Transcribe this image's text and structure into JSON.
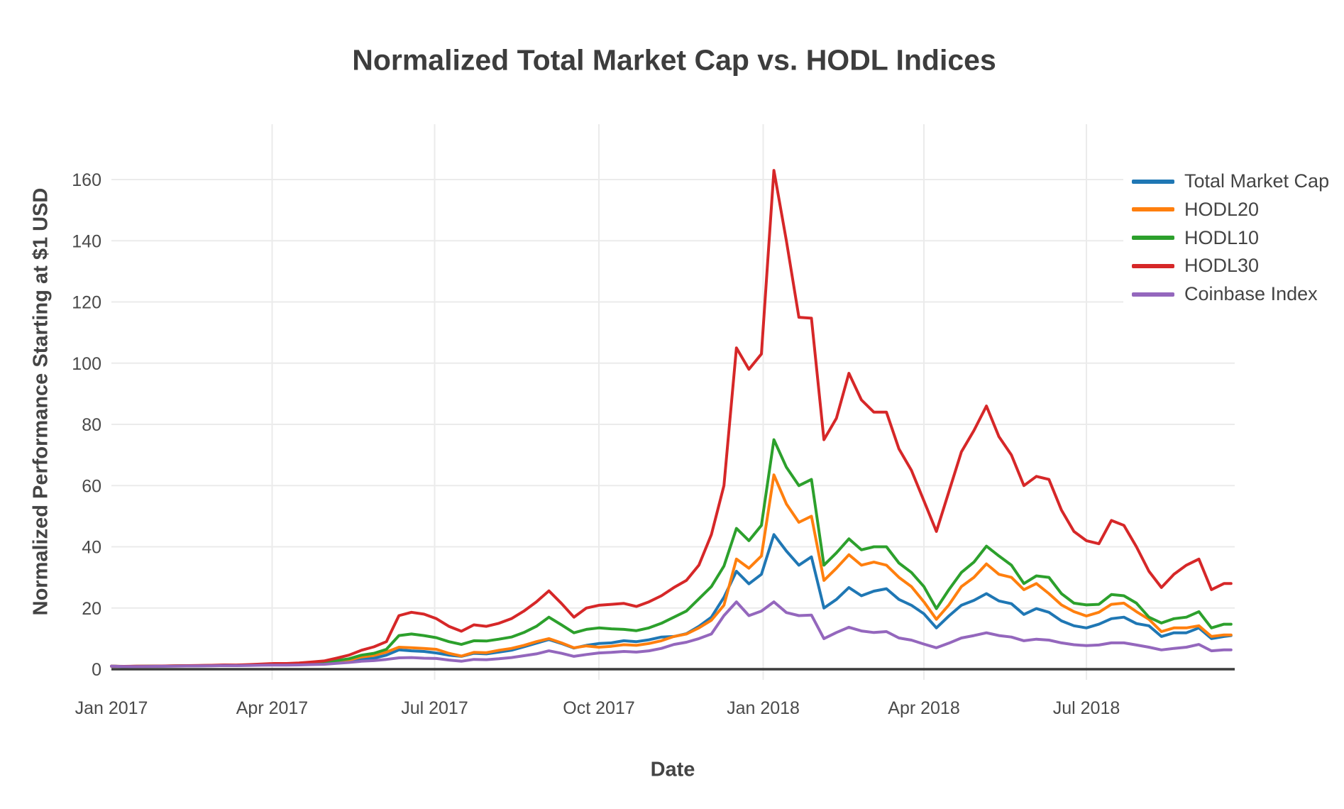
{
  "page": {
    "title": "Normalized Total Market Cap vs. HODL Indices"
  },
  "axes": {
    "x_title": "Date",
    "y_title": "Normalized Performance Starting at $1 USD"
  },
  "legend": {
    "items": [
      {
        "label": "Total Market Cap"
      },
      {
        "label": "HODL20"
      },
      {
        "label": "HODL10"
      },
      {
        "label": "HODL30"
      },
      {
        "label": "Coinbase Index"
      }
    ]
  },
  "chart_data": {
    "type": "line",
    "title": "Normalized Total Market Cap vs. HODL Indices",
    "xlabel": "Date",
    "ylabel": "Normalized Performance Starting at $1 USD",
    "grid": true,
    "legend_position": "top-right",
    "background_color": "#ffffff",
    "gridline_color": "#ebebeb",
    "zeroline_color": "#3b3b3b",
    "text_color": "#4a4a4a",
    "ylim": [
      -3.5,
      178
    ],
    "y_ticks": [
      0,
      20,
      40,
      60,
      80,
      100,
      120,
      140,
      160
    ],
    "x_ticks": [
      {
        "date": "2017-01-01",
        "label": "Jan 2017"
      },
      {
        "date": "2017-04-01",
        "label": "Apr 2017"
      },
      {
        "date": "2017-07-01",
        "label": "Jul 2017"
      },
      {
        "date": "2017-10-01",
        "label": "Oct 2017"
      },
      {
        "date": "2018-01-01",
        "label": "Jan 2018"
      },
      {
        "date": "2018-04-01",
        "label": "Apr 2018"
      },
      {
        "date": "2018-07-01",
        "label": "Jul 2018"
      }
    ],
    "x": [
      "2017-01-01",
      "2017-01-08",
      "2017-01-15",
      "2017-01-22",
      "2017-01-29",
      "2017-02-05",
      "2017-02-12",
      "2017-02-19",
      "2017-02-26",
      "2017-03-05",
      "2017-03-12",
      "2017-03-19",
      "2017-03-26",
      "2017-04-02",
      "2017-04-09",
      "2017-04-16",
      "2017-04-23",
      "2017-04-30",
      "2017-05-07",
      "2017-05-14",
      "2017-05-21",
      "2017-05-28",
      "2017-06-04",
      "2017-06-11",
      "2017-06-18",
      "2017-06-25",
      "2017-07-02",
      "2017-07-09",
      "2017-07-16",
      "2017-07-23",
      "2017-07-30",
      "2017-08-06",
      "2017-08-13",
      "2017-08-20",
      "2017-08-27",
      "2017-09-03",
      "2017-09-10",
      "2017-09-17",
      "2017-09-24",
      "2017-10-01",
      "2017-10-08",
      "2017-10-15",
      "2017-10-22",
      "2017-10-29",
      "2017-11-05",
      "2017-11-12",
      "2017-11-19",
      "2017-11-26",
      "2017-12-03",
      "2017-12-10",
      "2017-12-17",
      "2017-12-24",
      "2017-12-31",
      "2018-01-07",
      "2018-01-14",
      "2018-01-21",
      "2018-01-28",
      "2018-02-04",
      "2018-02-11",
      "2018-02-18",
      "2018-02-25",
      "2018-03-04",
      "2018-03-11",
      "2018-03-18",
      "2018-03-25",
      "2018-04-01",
      "2018-04-08",
      "2018-04-15",
      "2018-04-22",
      "2018-04-29",
      "2018-05-06",
      "2018-05-13",
      "2018-05-20",
      "2018-05-27",
      "2018-06-03",
      "2018-06-10",
      "2018-06-17",
      "2018-06-24",
      "2018-07-01",
      "2018-07-08",
      "2018-07-15",
      "2018-07-22",
      "2018-07-29",
      "2018-08-05",
      "2018-08-12",
      "2018-08-19",
      "2018-08-26",
      "2018-09-02",
      "2018-09-09",
      "2018-09-16",
      "2018-09-20"
    ],
    "series": [
      {
        "name": "Total Market Cap",
        "color": "#1f77b4",
        "values": [
          1.0,
          0.88,
          0.92,
          0.95,
          1.0,
          1.05,
          1.1,
          1.12,
          1.18,
          1.25,
          1.22,
          1.3,
          1.4,
          1.45,
          1.42,
          1.5,
          1.6,
          1.75,
          2.1,
          2.5,
          3.3,
          3.6,
          4.6,
          6.3,
          6.0,
          5.8,
          5.3,
          4.6,
          4.2,
          5.2,
          5.0,
          5.6,
          6.2,
          7.3,
          8.5,
          9.7,
          8.4,
          6.9,
          7.8,
          8.4,
          8.6,
          9.3,
          9.0,
          9.6,
          10.5,
          10.7,
          11.6,
          14.0,
          17.0,
          23.5,
          32.0,
          27.9,
          31.0,
          44.0,
          38.6,
          34.0,
          36.7,
          20.0,
          22.8,
          26.7,
          24.0,
          25.5,
          26.3,
          22.8,
          20.9,
          18.1,
          13.5,
          17.4,
          20.9,
          22.5,
          24.7,
          22.3,
          21.4,
          17.9,
          19.8,
          18.6,
          15.8,
          14.2,
          13.5,
          14.7,
          16.5,
          17.0,
          14.9,
          14.2,
          10.7,
          11.9,
          11.9,
          13.5,
          10.0,
          10.7,
          11.0
        ]
      },
      {
        "name": "HODL20",
        "color": "#ff7f0e",
        "values": [
          1.0,
          0.9,
          0.95,
          0.98,
          1.02,
          1.08,
          1.12,
          1.15,
          1.22,
          1.3,
          1.28,
          1.38,
          1.5,
          1.58,
          1.55,
          1.65,
          1.8,
          2.0,
          2.5,
          3.0,
          4.0,
          4.5,
          5.6,
          7.2,
          7.0,
          6.8,
          6.5,
          5.2,
          4.3,
          5.5,
          5.4,
          6.2,
          6.8,
          7.8,
          9.0,
          10.0,
          8.6,
          7.0,
          7.6,
          7.2,
          7.5,
          8.0,
          7.8,
          8.4,
          9.3,
          10.7,
          11.5,
          13.5,
          16.0,
          20.9,
          36.0,
          33.0,
          37.0,
          63.5,
          54.0,
          48.0,
          50.0,
          29.0,
          33.0,
          37.4,
          34.0,
          35.0,
          34.0,
          30.0,
          27.0,
          22.0,
          16.3,
          21.0,
          27.0,
          30.0,
          34.4,
          31.0,
          30.0,
          26.0,
          28.0,
          24.7,
          21.0,
          18.8,
          17.4,
          18.6,
          21.2,
          21.6,
          18.8,
          16.3,
          12.3,
          13.5,
          13.5,
          14.2,
          10.7,
          11.2,
          11.2
        ]
      },
      {
        "name": "HODL10",
        "color": "#2ca02c",
        "values": [
          1.0,
          0.9,
          0.94,
          0.97,
          1.02,
          1.07,
          1.12,
          1.15,
          1.22,
          1.3,
          1.28,
          1.4,
          1.55,
          1.65,
          1.62,
          1.75,
          1.95,
          2.2,
          2.8,
          3.4,
          4.6,
          5.2,
          6.5,
          11.0,
          11.5,
          11.0,
          10.3,
          9.0,
          8.1,
          9.3,
          9.2,
          9.8,
          10.5,
          12.0,
          14.0,
          17.0,
          14.5,
          11.9,
          13.0,
          13.5,
          13.2,
          13.0,
          12.6,
          13.5,
          15.0,
          17.0,
          19.0,
          23.0,
          27.0,
          33.7,
          46.0,
          42.0,
          47.0,
          75.0,
          66.0,
          60.0,
          62.0,
          34.0,
          38.0,
          42.6,
          39.0,
          40.0,
          40.0,
          34.7,
          31.6,
          27.0,
          19.8,
          26.0,
          31.6,
          35.0,
          40.2,
          37.0,
          34.0,
          28.0,
          30.5,
          30.0,
          24.7,
          21.6,
          21.0,
          21.2,
          24.4,
          24.0,
          21.6,
          17.0,
          15.1,
          16.5,
          17.0,
          18.8,
          13.5,
          14.7,
          14.7
        ]
      },
      {
        "name": "HODL30",
        "color": "#d62728",
        "values": [
          1.0,
          0.92,
          0.97,
          1.0,
          1.05,
          1.1,
          1.16,
          1.2,
          1.28,
          1.38,
          1.36,
          1.5,
          1.7,
          1.85,
          1.85,
          2.05,
          2.35,
          2.7,
          3.6,
          4.6,
          6.2,
          7.3,
          9.0,
          17.5,
          18.6,
          18.0,
          16.5,
          14.0,
          12.4,
          14.5,
          14.0,
          15.0,
          16.5,
          19.0,
          22.0,
          25.6,
          21.5,
          17.0,
          20.0,
          20.9,
          21.2,
          21.5,
          20.5,
          22.0,
          24.0,
          26.7,
          29.0,
          34.0,
          44.0,
          60.0,
          105.0,
          98.0,
          103.0,
          163.0,
          140.0,
          115.0,
          114.7,
          75.0,
          82.0,
          96.7,
          88.0,
          84.0,
          84.0,
          72.0,
          65.0,
          55.0,
          45.0,
          58.0,
          71.0,
          78.0,
          86.0,
          76.0,
          70.0,
          60.0,
          63.0,
          62.0,
          52.0,
          45.0,
          42.0,
          41.0,
          48.6,
          47.0,
          40.0,
          32.0,
          26.7,
          31.0,
          34.0,
          36.0,
          26.0,
          28.0,
          28.0
        ]
      },
      {
        "name": "Coinbase Index",
        "color": "#9467bd",
        "values": [
          1.0,
          0.85,
          0.88,
          0.9,
          0.95,
          1.0,
          1.05,
          1.07,
          1.12,
          1.18,
          1.15,
          1.2,
          1.3,
          1.35,
          1.32,
          1.4,
          1.5,
          1.6,
          1.9,
          2.2,
          2.6,
          2.8,
          3.2,
          3.7,
          3.8,
          3.6,
          3.5,
          3.0,
          2.6,
          3.2,
          3.1,
          3.4,
          3.8,
          4.4,
          5.0,
          6.0,
          5.2,
          4.2,
          4.8,
          5.3,
          5.5,
          5.8,
          5.6,
          6.0,
          6.8,
          8.1,
          8.8,
          10.0,
          11.5,
          17.5,
          22.0,
          17.5,
          19.0,
          22.0,
          18.5,
          17.5,
          17.7,
          10.0,
          12.0,
          13.7,
          12.5,
          12.0,
          12.3,
          10.2,
          9.5,
          8.2,
          7.0,
          8.5,
          10.2,
          11.0,
          11.9,
          11.0,
          10.5,
          9.3,
          9.8,
          9.5,
          8.6,
          8.0,
          7.7,
          7.9,
          8.6,
          8.6,
          7.9,
          7.2,
          6.3,
          6.8,
          7.2,
          8.1,
          6.0,
          6.3,
          6.3
        ]
      }
    ]
  }
}
